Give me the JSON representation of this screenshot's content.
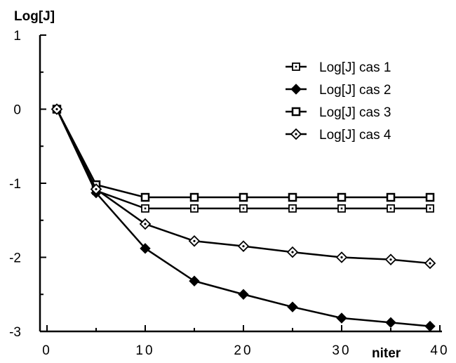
{
  "chart_data": {
    "type": "line",
    "title": "",
    "ylabel": "Log[J]",
    "xlabel": "niter",
    "xlim": [
      0,
      40
    ],
    "ylim": [
      -3,
      1
    ],
    "xticks": [
      0,
      10,
      20,
      30,
      40
    ],
    "yticks": [
      1,
      0,
      -1,
      -2,
      -3
    ],
    "xtick_labels": [
      "0",
      "10",
      "20",
      "30",
      "40"
    ],
    "ytick_labels": [
      "1",
      "0",
      "-1",
      "-2",
      "-3"
    ],
    "grid": false,
    "legend_position": "top-right",
    "series": [
      {
        "name": "Log[J] cas 1",
        "marker": "square-dot",
        "x": [
          1,
          5,
          10,
          15,
          20,
          25,
          30,
          35,
          39
        ],
        "y": [
          0,
          -1.1,
          -1.34,
          -1.34,
          -1.34,
          -1.34,
          -1.34,
          -1.34,
          -1.34
        ]
      },
      {
        "name": "Log[J] cas 2",
        "marker": "diamond-filled",
        "x": [
          1,
          5,
          10,
          15,
          20,
          25,
          30,
          35,
          39
        ],
        "y": [
          0,
          -1.13,
          -1.88,
          -2.32,
          -2.5,
          -2.67,
          -2.82,
          -2.88,
          -2.93
        ]
      },
      {
        "name": "Log[J] cas 3",
        "marker": "square-thick",
        "x": [
          1,
          5,
          10,
          15,
          20,
          25,
          30,
          35,
          39
        ],
        "y": [
          0,
          -1.02,
          -1.19,
          -1.19,
          -1.19,
          -1.19,
          -1.19,
          -1.19,
          -1.19
        ]
      },
      {
        "name": "Log[J] cas 4",
        "marker": "diamond-dot",
        "x": [
          1,
          5,
          10,
          15,
          20,
          25,
          30,
          35,
          39
        ],
        "y": [
          0,
          -1.08,
          -1.55,
          -1.78,
          -1.85,
          -1.93,
          -2.0,
          -2.03,
          -2.08
        ]
      }
    ]
  }
}
